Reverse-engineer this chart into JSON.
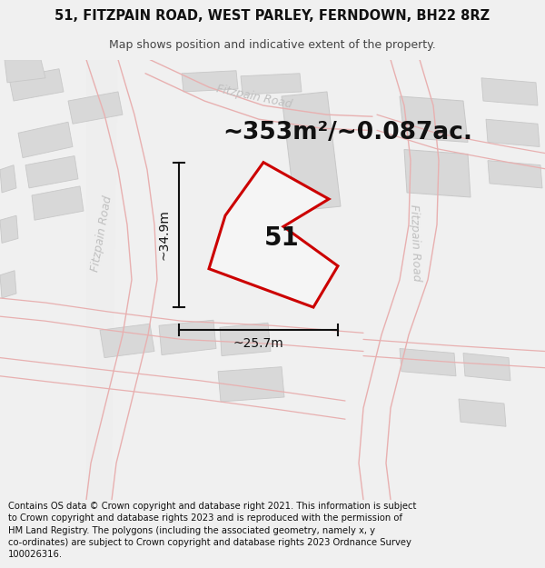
{
  "title_line1": "51, FITZPAIN ROAD, WEST PARLEY, FERNDOWN, BH22 8RZ",
  "title_line2": "Map shows position and indicative extent of the property.",
  "footer_text": "Contains OS data © Crown copyright and database right 2021. This information is subject to Crown copyright and database rights 2023 and is reproduced with the permission of HM Land Registry. The polygons (including the associated geometry, namely x, y co-ordinates) are subject to Crown copyright and database rights 2023 Ordnance Survey 100026316.",
  "area_label": "~353m²/~0.087ac.",
  "number_label": "51",
  "dim_width_label": "~25.7m",
  "dim_height_label": "~34.9m",
  "bg_color": "#f0f0f0",
  "map_bg": "#ffffff",
  "road_line_color": "#e8b0b0",
  "road_fill_color": "#e8e8e8",
  "building_fill": "#d8d8d8",
  "building_edge": "#c8c8c8",
  "property_edge": "#cc0000",
  "property_fill": "#f5f5f5",
  "road_label_color": "#c0c0c0",
  "dim_color": "#111111",
  "text_color": "#111111",
  "title_fontsize": 10.5,
  "subtitle_fontsize": 9,
  "area_fontsize": 19,
  "number_fontsize": 20,
  "dim_fontsize": 10,
  "road_label_fontsize": 9,
  "footer_fontsize": 7.2
}
